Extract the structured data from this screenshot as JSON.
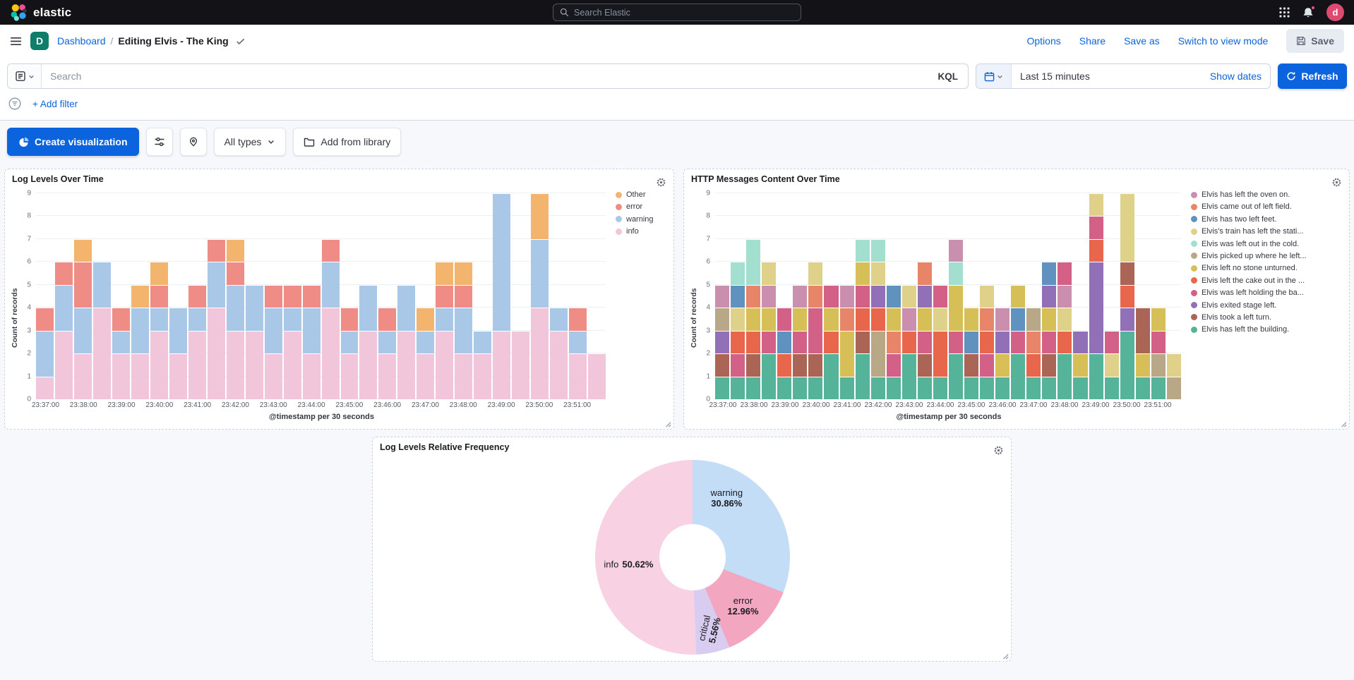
{
  "theme": {
    "primary": "#0b64dd",
    "topbar_bg": "#131317",
    "badge_green": "#0e7d6a",
    "avatar_pink": "#dd4a72",
    "notification_pink": "#f04e98",
    "text": "#343741",
    "text_subdued": "#69707d",
    "border": "#d3dae6"
  },
  "topbar": {
    "brand": "elastic",
    "search_placeholder": "Search Elastic",
    "avatar_initial": "d"
  },
  "navbar": {
    "app_badge": "D",
    "breadcrumb_root": "Dashboard",
    "separator": "/",
    "title": "Editing Elvis - The King",
    "actions": [
      "Options",
      "Share",
      "Save as",
      "Switch to view mode"
    ],
    "save_label": "Save"
  },
  "querybar": {
    "search_placeholder": "Search",
    "kql_label": "KQL",
    "time_range": "Last 15 minutes",
    "show_dates_label": "Show dates",
    "refresh_label": "Refresh"
  },
  "filterbar": {
    "add_filter_label": "+ Add filter"
  },
  "toolbar": {
    "create_viz_label": "Create visualization",
    "all_types_label": "All types",
    "add_library_label": "Add from library"
  },
  "chart_data": [
    {
      "type": "bar",
      "title": "Log Levels Over Time",
      "ylabel": "Count of records",
      "xlabel": "@timestamp per 30 seconds",
      "ymax": 9,
      "tick_every": 2,
      "legend": [
        {
          "label": "Other",
          "color": "#f3b46d"
        },
        {
          "label": "error",
          "color": "#f08c86"
        },
        {
          "label": "warning",
          "color": "#a9c8e8"
        },
        {
          "label": "info",
          "color": "#f2c6da"
        }
      ],
      "categories": [
        "23:37:00",
        "23:37:30",
        "23:38:00",
        "23:38:30",
        "23:39:00",
        "23:39:30",
        "23:40:00",
        "23:40:30",
        "23:41:00",
        "23:41:30",
        "23:42:00",
        "23:42:30",
        "23:43:00",
        "23:43:30",
        "23:44:00",
        "23:44:30",
        "23:45:00",
        "23:45:30",
        "23:46:00",
        "23:46:30",
        "23:47:00",
        "23:47:30",
        "23:48:00",
        "23:48:30",
        "23:49:00",
        "23:49:30",
        "23:50:00",
        "23:50:30",
        "23:51:00",
        "23:51:30"
      ],
      "stacks": [
        [
          [
            3,
            1
          ],
          [
            2,
            2
          ],
          [
            1,
            1
          ]
        ],
        [
          [
            3,
            3
          ],
          [
            2,
            2
          ],
          [
            1,
            1
          ]
        ],
        [
          [
            3,
            2
          ],
          [
            2,
            2
          ],
          [
            1,
            2
          ],
          [
            0,
            1
          ]
        ],
        [
          [
            3,
            4
          ],
          [
            2,
            2
          ]
        ],
        [
          [
            3,
            2
          ],
          [
            2,
            1
          ],
          [
            1,
            1
          ]
        ],
        [
          [
            3,
            2
          ],
          [
            2,
            2
          ],
          [
            0,
            1
          ]
        ],
        [
          [
            3,
            3
          ],
          [
            2,
            1
          ],
          [
            1,
            1
          ],
          [
            0,
            1
          ]
        ],
        [
          [
            3,
            2
          ],
          [
            2,
            2
          ]
        ],
        [
          [
            3,
            3
          ],
          [
            2,
            1
          ],
          [
            1,
            1
          ]
        ],
        [
          [
            3,
            4
          ],
          [
            2,
            2
          ],
          [
            1,
            1
          ]
        ],
        [
          [
            3,
            3
          ],
          [
            2,
            2
          ],
          [
            1,
            1
          ],
          [
            0,
            1
          ]
        ],
        [
          [
            3,
            3
          ],
          [
            2,
            2
          ]
        ],
        [
          [
            3,
            2
          ],
          [
            2,
            2
          ],
          [
            1,
            1
          ]
        ],
        [
          [
            3,
            3
          ],
          [
            2,
            1
          ],
          [
            1,
            1
          ]
        ],
        [
          [
            3,
            2
          ],
          [
            2,
            2
          ],
          [
            1,
            1
          ]
        ],
        [
          [
            3,
            4
          ],
          [
            2,
            2
          ],
          [
            1,
            1
          ]
        ],
        [
          [
            3,
            2
          ],
          [
            2,
            1
          ],
          [
            1,
            1
          ]
        ],
        [
          [
            3,
            3
          ],
          [
            2,
            2
          ]
        ],
        [
          [
            3,
            2
          ],
          [
            2,
            1
          ],
          [
            1,
            1
          ]
        ],
        [
          [
            3,
            3
          ],
          [
            2,
            2
          ]
        ],
        [
          [
            3,
            2
          ],
          [
            2,
            1
          ],
          [
            0,
            1
          ]
        ],
        [
          [
            3,
            3
          ],
          [
            2,
            1
          ],
          [
            1,
            1
          ],
          [
            0,
            1
          ]
        ],
        [
          [
            3,
            2
          ],
          [
            2,
            2
          ],
          [
            1,
            1
          ],
          [
            0,
            1
          ]
        ],
        [
          [
            3,
            2
          ],
          [
            2,
            1
          ]
        ],
        [
          [
            3,
            3
          ],
          [
            2,
            6
          ]
        ],
        [
          [
            3,
            3
          ]
        ],
        [
          [
            3,
            4
          ],
          [
            2,
            3
          ],
          [
            0,
            2
          ]
        ],
        [
          [
            3,
            3
          ],
          [
            2,
            1
          ]
        ],
        [
          [
            3,
            2
          ],
          [
            2,
            1
          ],
          [
            1,
            1
          ]
        ],
        [
          [
            3,
            2
          ]
        ]
      ]
    },
    {
      "type": "bar",
      "title": "HTTP Messages Content Over Time",
      "ylabel": "Count of records",
      "xlabel": "@timestamp per 30 seconds",
      "ymax": 9,
      "tick_every": 2,
      "legend": [
        {
          "label": "Elvis has left the oven on.",
          "color": "#ca8eae"
        },
        {
          "label": "Elvis came out of left field.",
          "color": "#e88568"
        },
        {
          "label": "Elvis has two left feet.",
          "color": "#6092c0"
        },
        {
          "label": "Elvis's train has left the stati...",
          "color": "#dfd08a"
        },
        {
          "label": "Elvis was left out in the cold.",
          "color": "#a2dfce"
        },
        {
          "label": "Elvis picked up where he left...",
          "color": "#b9a888"
        },
        {
          "label": "Elvis left no stone unturned.",
          "color": "#d6bf57"
        },
        {
          "label": "Elvis left the cake out in the ...",
          "color": "#e7664c"
        },
        {
          "label": "Elvis was left holding the ba...",
          "color": "#d36086"
        },
        {
          "label": "Elvis exited stage left.",
          "color": "#9170b8"
        },
        {
          "label": "Elvis took a left turn.",
          "color": "#aa6556"
        },
        {
          "label": "Elvis has left the building.",
          "color": "#54b399"
        }
      ],
      "categories": [
        "23:37:00",
        "23:37:30",
        "23:38:00",
        "23:38:30",
        "23:39:00",
        "23:39:30",
        "23:40:00",
        "23:40:30",
        "23:41:00",
        "23:41:30",
        "23:42:00",
        "23:42:30",
        "23:43:00",
        "23:43:30",
        "23:44:00",
        "23:44:30",
        "23:45:00",
        "23:45:30",
        "23:46:00",
        "23:46:30",
        "23:47:00",
        "23:47:30",
        "23:48:00",
        "23:48:30",
        "23:49:00",
        "23:49:30",
        "23:50:00",
        "23:50:30",
        "23:51:00",
        "23:51:30"
      ],
      "stacks": [
        [
          [
            11,
            1
          ],
          [
            10,
            1
          ],
          [
            9,
            1
          ],
          [
            5,
            1
          ],
          [
            0,
            1
          ]
        ],
        [
          [
            11,
            1
          ],
          [
            8,
            1
          ],
          [
            7,
            1
          ],
          [
            3,
            1
          ],
          [
            2,
            1
          ],
          [
            4,
            1
          ]
        ],
        [
          [
            11,
            1
          ],
          [
            10,
            1
          ],
          [
            7,
            1
          ],
          [
            6,
            1
          ],
          [
            1,
            1
          ],
          [
            4,
            2
          ]
        ],
        [
          [
            11,
            2
          ],
          [
            8,
            1
          ],
          [
            6,
            1
          ],
          [
            0,
            1
          ],
          [
            3,
            1
          ]
        ],
        [
          [
            11,
            1
          ],
          [
            7,
            1
          ],
          [
            2,
            1
          ],
          [
            8,
            1
          ]
        ],
        [
          [
            11,
            1
          ],
          [
            10,
            1
          ],
          [
            8,
            1
          ],
          [
            6,
            1
          ],
          [
            0,
            1
          ]
        ],
        [
          [
            11,
            1
          ],
          [
            10,
            1
          ],
          [
            8,
            2
          ],
          [
            1,
            1
          ],
          [
            3,
            1
          ]
        ],
        [
          [
            11,
            2
          ],
          [
            7,
            1
          ],
          [
            6,
            1
          ],
          [
            8,
            1
          ]
        ],
        [
          [
            11,
            1
          ],
          [
            6,
            2
          ],
          [
            1,
            1
          ],
          [
            0,
            1
          ]
        ],
        [
          [
            11,
            2
          ],
          [
            10,
            1
          ],
          [
            7,
            1
          ],
          [
            8,
            1
          ],
          [
            6,
            1
          ],
          [
            4,
            1
          ]
        ],
        [
          [
            11,
            1
          ],
          [
            5,
            2
          ],
          [
            7,
            1
          ],
          [
            9,
            1
          ],
          [
            3,
            1
          ],
          [
            4,
            1
          ]
        ],
        [
          [
            11,
            1
          ],
          [
            8,
            1
          ],
          [
            1,
            1
          ],
          [
            6,
            1
          ],
          [
            2,
            1
          ]
        ],
        [
          [
            11,
            2
          ],
          [
            7,
            1
          ],
          [
            0,
            1
          ],
          [
            3,
            1
          ]
        ],
        [
          [
            11,
            1
          ],
          [
            10,
            1
          ],
          [
            8,
            1
          ],
          [
            6,
            1
          ],
          [
            9,
            1
          ],
          [
            1,
            1
          ]
        ],
        [
          [
            11,
            1
          ],
          [
            7,
            2
          ],
          [
            3,
            1
          ],
          [
            8,
            1
          ]
        ],
        [
          [
            11,
            2
          ],
          [
            8,
            1
          ],
          [
            6,
            2
          ],
          [
            4,
            1
          ],
          [
            0,
            1
          ]
        ],
        [
          [
            11,
            1
          ],
          [
            10,
            1
          ],
          [
            2,
            1
          ],
          [
            6,
            1
          ]
        ],
        [
          [
            11,
            1
          ],
          [
            8,
            1
          ],
          [
            7,
            1
          ],
          [
            1,
            1
          ],
          [
            3,
            1
          ]
        ],
        [
          [
            11,
            1
          ],
          [
            6,
            1
          ],
          [
            9,
            1
          ],
          [
            0,
            1
          ]
        ],
        [
          [
            11,
            2
          ],
          [
            8,
            1
          ],
          [
            2,
            1
          ],
          [
            6,
            1
          ]
        ],
        [
          [
            11,
            1
          ],
          [
            7,
            1
          ],
          [
            1,
            1
          ],
          [
            5,
            1
          ]
        ],
        [
          [
            11,
            1
          ],
          [
            10,
            1
          ],
          [
            8,
            1
          ],
          [
            6,
            1
          ],
          [
            9,
            1
          ],
          [
            2,
            1
          ]
        ],
        [
          [
            11,
            2
          ],
          [
            7,
            1
          ],
          [
            3,
            1
          ],
          [
            0,
            1
          ],
          [
            8,
            1
          ]
        ],
        [
          [
            11,
            1
          ],
          [
            6,
            1
          ],
          [
            9,
            1
          ]
        ],
        [
          [
            11,
            2
          ],
          [
            9,
            4
          ],
          [
            7,
            1
          ],
          [
            8,
            1
          ],
          [
            3,
            1
          ]
        ],
        [
          [
            11,
            1
          ],
          [
            3,
            1
          ],
          [
            8,
            1
          ]
        ],
        [
          [
            11,
            3
          ],
          [
            9,
            1
          ],
          [
            7,
            1
          ],
          [
            10,
            1
          ],
          [
            3,
            3
          ]
        ],
        [
          [
            11,
            1
          ],
          [
            6,
            1
          ],
          [
            10,
            2
          ]
        ],
        [
          [
            11,
            1
          ],
          [
            5,
            1
          ],
          [
            8,
            1
          ],
          [
            6,
            1
          ]
        ],
        [
          [
            5,
            1
          ],
          [
            3,
            1
          ]
        ]
      ]
    },
    {
      "type": "pie",
      "title": "Log Levels Relative Frequency",
      "hole_ratio": 0.34,
      "slices": [
        {
          "label": "warning",
          "pct": 30.86,
          "color": "#c3ddf6",
          "label_angle": 30,
          "label_r": 0.7,
          "label_layout": "stack"
        },
        {
          "label": "error",
          "pct": 12.96,
          "color": "#f2a6c0",
          "label_angle": 134,
          "label_r": 0.72,
          "label_layout": "stack"
        },
        {
          "label": "critical",
          "pct": 5.56,
          "color": "#d8ccf0",
          "label_angle": 167,
          "label_r": 0.76,
          "label_layout": "stack",
          "label_rotate": -77
        },
        {
          "label": "info",
          "pct": 50.62,
          "color": "#f8d2e2",
          "label_angle": 264,
          "label_r": 0.66,
          "label_layout": "inline"
        }
      ]
    }
  ]
}
